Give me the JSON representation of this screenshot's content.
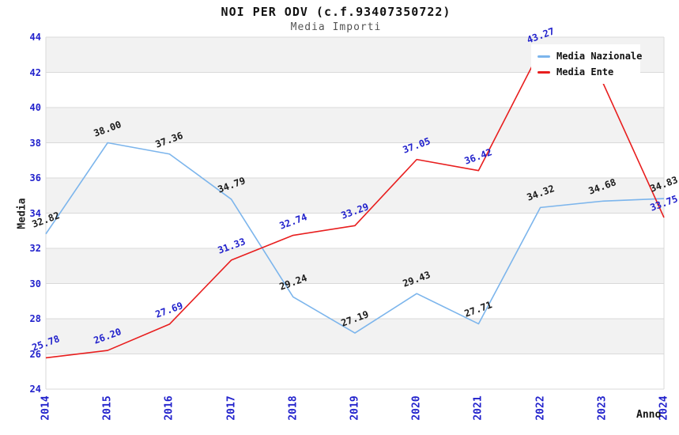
{
  "chart_data": {
    "type": "line",
    "title": "NOI PER ODV (c.f.93407350722)",
    "subtitle": "Media Importi",
    "xlabel": "Anno",
    "ylabel": "Media",
    "ylim": [
      24,
      44
    ],
    "y_tick_step": 2,
    "grid": true,
    "legend_position": "top-right",
    "categories": [
      "2014",
      "2015",
      "2016",
      "2017",
      "2018",
      "2019",
      "2020",
      "2021",
      "2022",
      "2023",
      "2024"
    ],
    "series": [
      {
        "name": "Media Nazionale",
        "color": "#7cb5ec",
        "label_color": "#1a1a1a",
        "values": [
          32.82,
          38.0,
          37.36,
          34.79,
          29.24,
          27.19,
          29.43,
          27.71,
          34.32,
          34.68,
          34.83
        ],
        "hidden_label_indices": []
      },
      {
        "name": "Media Ente",
        "color": "#e81e1e",
        "label_color": "#2222cc",
        "values": [
          25.78,
          26.2,
          27.69,
          31.33,
          32.74,
          33.29,
          37.05,
          36.42,
          43.27,
          41.5,
          33.75
        ],
        "hidden_label_indices": [
          9
        ]
      }
    ],
    "style": {
      "background": "#ffffff",
      "band_color": "#f2f2f2",
      "grid_color": "#d9d9d9",
      "axis_border_color": "#d9d9d9",
      "tick_label_color": "#2222cc",
      "title_color": "#111111",
      "subtitle_color": "#555555"
    }
  }
}
